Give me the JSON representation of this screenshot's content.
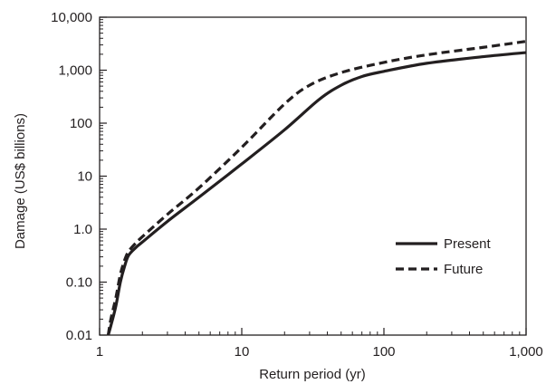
{
  "chart_data": {
    "type": "line",
    "title": "",
    "xlabel": "Return period (yr)",
    "ylabel": "Damage (US$ billions)",
    "xscale": "log",
    "yscale": "log",
    "xlim": [
      1,
      1000
    ],
    "ylim": [
      0.01,
      10000
    ],
    "x_ticks": [
      1,
      10,
      100,
      1000
    ],
    "x_tick_labels": [
      "1",
      "10",
      "100",
      "1,000"
    ],
    "y_ticks": [
      0.01,
      0.1,
      1,
      10,
      100,
      1000,
      10000
    ],
    "y_tick_labels": [
      "0.01",
      "0.10",
      "1.0",
      "10",
      "100",
      "1,000",
      "10,000"
    ],
    "grid": false,
    "legend_position": "bottom-right",
    "series": [
      {
        "name": "Present",
        "style": "solid",
        "color": "#231f20",
        "points": [
          [
            1.15,
            0.01
          ],
          [
            1.2,
            0.015
          ],
          [
            1.3,
            0.035
          ],
          [
            1.4,
            0.1
          ],
          [
            1.5,
            0.2
          ],
          [
            1.6,
            0.32
          ],
          [
            1.8,
            0.45
          ],
          [
            2,
            0.57
          ],
          [
            3,
            1.4
          ],
          [
            5,
            4
          ],
          [
            10,
            17
          ],
          [
            20,
            75
          ],
          [
            35,
            280
          ],
          [
            50,
            520
          ],
          [
            70,
            760
          ],
          [
            100,
            950
          ],
          [
            200,
            1350
          ],
          [
            500,
            1800
          ],
          [
            1000,
            2150
          ]
        ]
      },
      {
        "name": "Future",
        "style": "dashed",
        "color": "#231f20",
        "points": [
          [
            1.15,
            0.01
          ],
          [
            1.2,
            0.02
          ],
          [
            1.3,
            0.05
          ],
          [
            1.4,
            0.14
          ],
          [
            1.5,
            0.26
          ],
          [
            1.6,
            0.38
          ],
          [
            1.8,
            0.55
          ],
          [
            2,
            0.72
          ],
          [
            3,
            1.9
          ],
          [
            5,
            6
          ],
          [
            10,
            35
          ],
          [
            20,
            230
          ],
          [
            30,
            520
          ],
          [
            50,
            900
          ],
          [
            100,
            1400
          ],
          [
            200,
            1950
          ],
          [
            500,
            2700
          ],
          [
            1000,
            3500
          ]
        ]
      }
    ]
  }
}
